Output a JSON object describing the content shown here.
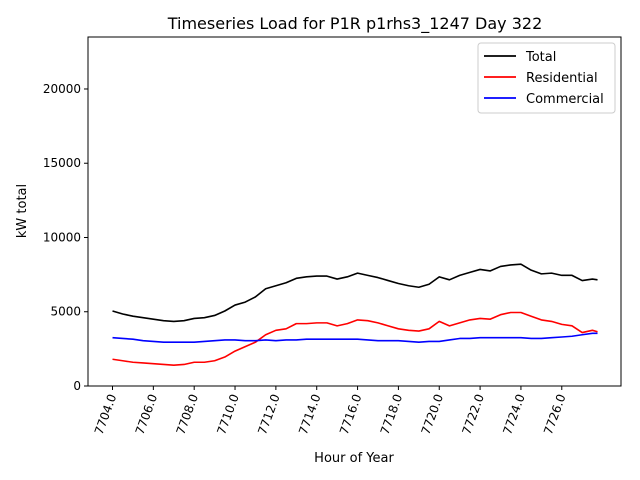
{
  "chart_data": {
    "type": "line",
    "title": "Timeseries Load for P1R p1rhs3_1247  Day 322",
    "xlabel": "Hour of Year",
    "ylabel": "kW total",
    "xlim": [
      7702.8,
      7728.9
    ],
    "ylim": [
      0,
      23500
    ],
    "grid": false,
    "legend_position": "top-right",
    "x_ticks": [
      7704,
      7706,
      7708,
      7710,
      7712,
      7714,
      7716,
      7718,
      7720,
      7722,
      7724,
      7726
    ],
    "x_tick_labels": [
      "7704.0",
      "7706.0",
      "7708.0",
      "7710.0",
      "7712.0",
      "7714.0",
      "7716.0",
      "7718.0",
      "7720.0",
      "7722.0",
      "7724.0",
      "7726.0"
    ],
    "y_ticks": [
      0,
      5000,
      10000,
      15000,
      20000
    ],
    "y_tick_labels": [
      "0",
      "5000",
      "10000",
      "15000",
      "20000"
    ],
    "x": [
      7704.0,
      7704.5,
      7705.0,
      7705.5,
      7706.0,
      7706.5,
      7707.0,
      7707.5,
      7708.0,
      7708.5,
      7709.0,
      7709.5,
      7710.0,
      7710.5,
      7711.0,
      7711.5,
      7712.0,
      7712.5,
      7713.0,
      7713.5,
      7714.0,
      7714.5,
      7715.0,
      7715.5,
      7716.0,
      7716.5,
      7717.0,
      7717.5,
      7718.0,
      7718.5,
      7719.0,
      7719.5,
      7720.0,
      7720.5,
      7721.0,
      7721.5,
      7722.0,
      7722.5,
      7723.0,
      7723.5,
      7724.0,
      7724.5,
      7725.0,
      7725.5,
      7726.0,
      7726.5,
      7727.0,
      7727.5,
      7727.75
    ],
    "series": [
      {
        "name": "Total",
        "color": "#000000",
        "values": [
          5050,
          4850,
          4700,
          4600,
          4500,
          4400,
          4350,
          4400,
          4550,
          4600,
          4750,
          5050,
          5450,
          5650,
          6000,
          6550,
          6750,
          6950,
          7250,
          7350,
          7400,
          7400,
          7200,
          7350,
          7600,
          7450,
          7300,
          7100,
          6900,
          6750,
          6650,
          6850,
          7350,
          7150,
          7450,
          7650,
          7850,
          7750,
          8050,
          8150,
          8200,
          7800,
          7550,
          7600,
          7450,
          7450,
          7100,
          7200,
          7150
        ]
      },
      {
        "name": "Residential",
        "color": "#ff0000",
        "values": [
          1800,
          1700,
          1600,
          1550,
          1500,
          1450,
          1400,
          1450,
          1600,
          1600,
          1700,
          1950,
          2350,
          2650,
          2950,
          3450,
          3750,
          3850,
          4200,
          4200,
          4250,
          4250,
          4050,
          4200,
          4450,
          4400,
          4250,
          4050,
          3850,
          3750,
          3700,
          3850,
          4350,
          4050,
          4250,
          4450,
          4550,
          4500,
          4800,
          4950,
          4950,
          4700,
          4450,
          4350,
          4150,
          4050,
          3600,
          3750,
          3650
        ]
      },
      {
        "name": "Commercial",
        "color": "#0000ff",
        "values": [
          3250,
          3200,
          3150,
          3050,
          3000,
          2950,
          2950,
          2950,
          2950,
          3000,
          3050,
          3100,
          3100,
          3050,
          3050,
          3100,
          3050,
          3100,
          3100,
          3150,
          3150,
          3150,
          3150,
          3150,
          3150,
          3100,
          3050,
          3050,
          3050,
          3000,
          2950,
          3000,
          3000,
          3100,
          3200,
          3200,
          3250,
          3250,
          3250,
          3250,
          3250,
          3200,
          3200,
          3250,
          3300,
          3350,
          3450,
          3550,
          3550
        ]
      }
    ]
  }
}
